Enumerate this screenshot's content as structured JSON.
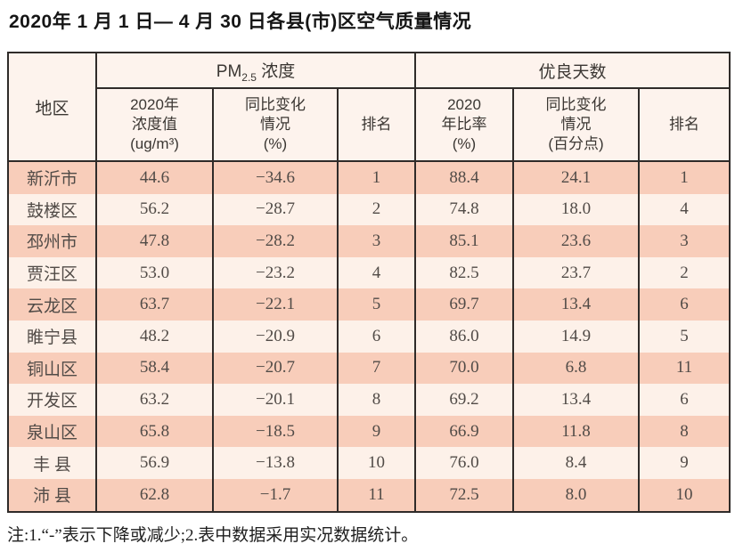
{
  "title": "2020年 1 月 1 日— 4 月 30 日各县(市)区空气质量情况",
  "note": "注:1.“-”表示下降或减少;2.表中数据采用实况数据统计。",
  "colors": {
    "salmon_row": "#f8cdba",
    "light_row": "#fdf1e9",
    "header_bg": "#fdf3ed",
    "border": "#2f2b29",
    "body_text": "#514b47"
  },
  "table": {
    "header": {
      "region": "地区",
      "pm_group": {
        "prefix": "PM",
        "sub": "2.5",
        "suffix": " 浓度"
      },
      "good_group": "优良天数",
      "pm_value": "2020年\n浓度值\n(ug/m³)",
      "pm_change": "同比变化\n情况\n(%)",
      "pm_rank": "排名",
      "ratio": "2020\n年比率\n(%)",
      "ratio_change": "同比变化\n情况\n(百分点)",
      "days_rank": "排名"
    },
    "rows": [
      {
        "region": "新沂市",
        "pm25": "44.6",
        "pm25_change": "−34.6",
        "pm25_rank": "1",
        "ratio": "88.4",
        "ratio_change": "24.1",
        "days_rank": "1"
      },
      {
        "region": "鼓楼区",
        "pm25": "56.2",
        "pm25_change": "−28.7",
        "pm25_rank": "2",
        "ratio": "74.8",
        "ratio_change": "18.0",
        "days_rank": "4"
      },
      {
        "region": "邳州市",
        "pm25": "47.8",
        "pm25_change": "−28.2",
        "pm25_rank": "3",
        "ratio": "85.1",
        "ratio_change": "23.6",
        "days_rank": "3"
      },
      {
        "region": "贾汪区",
        "pm25": "53.0",
        "pm25_change": "−23.2",
        "pm25_rank": "4",
        "ratio": "82.5",
        "ratio_change": "23.7",
        "days_rank": "2"
      },
      {
        "region": "云龙区",
        "pm25": "63.7",
        "pm25_change": "−22.1",
        "pm25_rank": "5",
        "ratio": "69.7",
        "ratio_change": "13.4",
        "days_rank": "6"
      },
      {
        "region": "睢宁县",
        "pm25": "48.2",
        "pm25_change": "−20.9",
        "pm25_rank": "6",
        "ratio": "86.0",
        "ratio_change": "14.9",
        "days_rank": "5"
      },
      {
        "region": "铜山区",
        "pm25": "58.4",
        "pm25_change": "−20.7",
        "pm25_rank": "7",
        "ratio": "70.0",
        "ratio_change": "6.8",
        "days_rank": "11"
      },
      {
        "region": "开发区",
        "pm25": "63.2",
        "pm25_change": "−20.1",
        "pm25_rank": "8",
        "ratio": "69.2",
        "ratio_change": "13.4",
        "days_rank": "6"
      },
      {
        "region": "泉山区",
        "pm25": "65.8",
        "pm25_change": "−18.5",
        "pm25_rank": "9",
        "ratio": "66.9",
        "ratio_change": "11.8",
        "days_rank": "8"
      },
      {
        "region": "丰 县",
        "pm25": "56.9",
        "pm25_change": "−13.8",
        "pm25_rank": "10",
        "ratio": "76.0",
        "ratio_change": "8.4",
        "days_rank": "9"
      },
      {
        "region": "沛 县",
        "pm25": "62.8",
        "pm25_change": "−1.7",
        "pm25_rank": "11",
        "ratio": "72.5",
        "ratio_change": "8.0",
        "days_rank": "10"
      }
    ]
  }
}
